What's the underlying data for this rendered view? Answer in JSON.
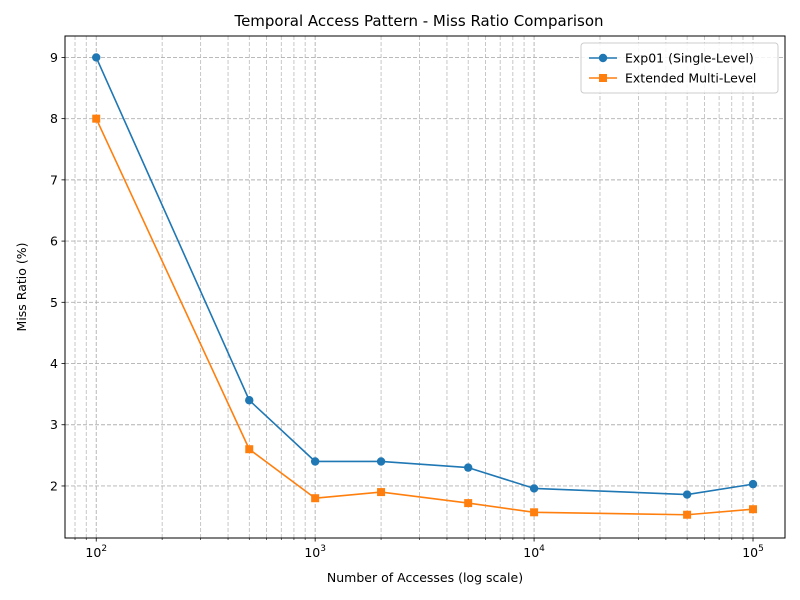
{
  "chart_data": {
    "type": "line",
    "title": "Temporal Access Pattern - Miss Ratio Comparison",
    "xlabel": "Number of Accesses (log scale)",
    "ylabel": "Miss Ratio (%)",
    "x_scale": "log",
    "xlim": [
      72,
      140000
    ],
    "ylim": [
      1.15,
      9.35
    ],
    "x_ticks": [
      100,
      1000,
      10000,
      100000
    ],
    "x_tick_labels": [
      {
        "base": "10",
        "exp": "2"
      },
      {
        "base": "10",
        "exp": "3"
      },
      {
        "base": "10",
        "exp": "4"
      },
      {
        "base": "10",
        "exp": "5"
      }
    ],
    "y_ticks": [
      2,
      3,
      4,
      5,
      6,
      7,
      8,
      9
    ],
    "y_tick_labels": [
      "2",
      "3",
      "4",
      "5",
      "6",
      "7",
      "8",
      "9"
    ],
    "grid": true,
    "grid_style": "dashed, major and minor",
    "legend_position": "top-right",
    "x": [
      100,
      500,
      1000,
      2000,
      5000,
      10000,
      50000,
      100000
    ],
    "series": [
      {
        "name": "Exp01 (Single-Level)",
        "color": "#1f77b4",
        "marker": "circle",
        "values": [
          9.0,
          3.4,
          2.4,
          2.4,
          2.3,
          1.96,
          1.86,
          2.03
        ]
      },
      {
        "name": "Extended Multi-Level",
        "color": "#ff7f0e",
        "marker": "square",
        "values": [
          8.0,
          2.6,
          1.8,
          1.9,
          1.72,
          1.57,
          1.53,
          1.62
        ]
      }
    ]
  }
}
